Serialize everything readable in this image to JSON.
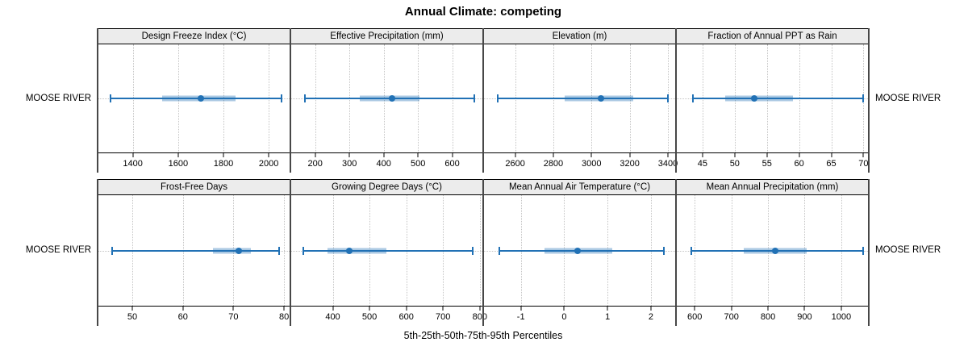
{
  "colors": {
    "line": "#2171b5",
    "band": "rgba(33,113,181,0.38)",
    "strip_bg": "#ececec",
    "grid": "#c4c4c4",
    "frame": "#474747"
  },
  "chart_data": {
    "type": "box",
    "title": "Annual Climate: competing",
    "caption": "5th-25th-50th-75th-95th Percentiles",
    "group": "MOOSE RIVER",
    "layout": {
      "rows": 2,
      "cols": 4
    },
    "percentile_labels": [
      "5th",
      "25th",
      "50th",
      "75th",
      "95th"
    ],
    "panels": [
      {
        "label": "Design Freeze Index (°C)",
        "xlim": [
          1248,
          2092
        ],
        "ticks": [
          1400,
          1600,
          1800,
          2000
        ],
        "percentiles": [
          1300,
          1530,
          1700,
          1855,
          2055
        ]
      },
      {
        "label": "Effective Precipitation (mm)",
        "xlim": [
          130,
          688
        ],
        "ticks": [
          200,
          300,
          400,
          500,
          600
        ],
        "percentiles": [
          170,
          330,
          425,
          505,
          665
        ]
      },
      {
        "label": "Elevation (m)",
        "xlim": [
          2437,
          3438
        ],
        "ticks": [
          2600,
          2800,
          3000,
          3200,
          3400
        ],
        "percentiles": [
          2510,
          2860,
          3050,
          3220,
          3400
        ]
      },
      {
        "label": "Fraction of Annual PPT as Rain",
        "xlim": [
          41,
          70.7
        ],
        "ticks": [
          45,
          50,
          55,
          60,
          65,
          70
        ],
        "percentiles": [
          43.5,
          48.5,
          53,
          59,
          70
        ]
      },
      {
        "label": "Frost-Free Days",
        "xlim": [
          43.3,
          81.1
        ],
        "ticks": [
          50,
          60,
          70,
          80
        ],
        "percentiles": [
          46,
          66,
          71,
          73.5,
          79
        ]
      },
      {
        "label": "Growing Degree Days (°C)",
        "xlim": [
          287,
          807
        ],
        "ticks": [
          400,
          500,
          600,
          700,
          800
        ],
        "percentiles": [
          320,
          385,
          445,
          547,
          780
        ]
      },
      {
        "label": "Mean Annual Air Temperature (°C)",
        "xlim": [
          -1.85,
          2.56
        ],
        "ticks": [
          -1,
          0,
          1,
          2
        ],
        "percentiles": [
          -1.5,
          -0.45,
          0.3,
          1.1,
          2.3
        ]
      },
      {
        "label": "Mean Annual Precipitation (mm)",
        "xlim": [
          551,
          1073
        ],
        "ticks": [
          600,
          700,
          800,
          900,
          1000
        ],
        "percentiles": [
          590,
          733,
          820,
          905,
          1060
        ]
      }
    ]
  }
}
